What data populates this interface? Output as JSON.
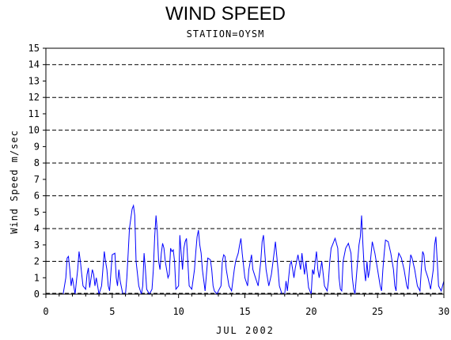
{
  "chart_data": {
    "type": "line",
    "title": "WIND SPEED",
    "subtitle": "STATION=OYSM",
    "xlabel": "JUL 2002",
    "ylabel": "Wind Speed m/sec",
    "xlim": [
      0,
      30
    ],
    "ylim": [
      0,
      15
    ],
    "x_ticks": [
      0,
      5,
      10,
      15,
      20,
      25,
      30
    ],
    "y_ticks": [
      0,
      1,
      2,
      3,
      4,
      5,
      6,
      7,
      8,
      9,
      10,
      11,
      12,
      13,
      14,
      15
    ],
    "gridlines_y": [
      2,
      4,
      6,
      8,
      10,
      12,
      14
    ],
    "grid_style": "dashed",
    "line_color": "#0000ff",
    "series": [
      {
        "x": [
          0.3,
          1.0,
          1.3,
          1.5,
          1.6,
          1.7,
          1.8,
          1.9,
          2.0,
          2.2,
          2.3,
          2.4,
          2.5,
          2.6,
          2.7,
          2.8,
          3.0,
          3.1,
          3.2,
          3.3,
          3.5,
          3.6,
          3.7,
          3.8,
          4.0,
          4.2,
          4.4,
          4.5,
          4.6,
          4.7,
          4.8,
          5.0,
          5.2,
          5.3,
          5.4,
          5.5,
          5.6,
          5.8,
          6.0,
          6.1,
          6.2,
          6.3,
          6.5,
          6.6,
          6.7,
          6.8,
          7.0,
          7.2,
          7.3,
          7.4,
          7.5,
          7.6,
          7.8,
          8.0,
          8.1,
          8.2,
          8.3,
          8.4,
          8.5,
          8.6,
          8.7,
          8.8,
          8.9,
          9.0,
          9.2,
          9.3,
          9.4,
          9.5,
          9.6,
          9.7,
          9.8,
          10.0,
          10.1,
          10.2,
          10.3,
          10.4,
          10.5,
          10.6,
          10.8,
          11.0,
          11.2,
          11.3,
          11.4,
          11.5,
          11.6,
          11.7,
          11.8,
          12.0,
          12.2,
          12.4,
          12.5,
          12.6,
          12.7,
          12.9,
          13.0,
          13.2,
          13.3,
          13.4,
          13.5,
          13.6,
          13.8,
          14.0,
          14.2,
          14.3,
          14.5,
          14.6,
          14.7,
          14.8,
          15.0,
          15.2,
          15.3,
          15.5,
          15.6,
          15.8,
          16.0,
          16.2,
          16.3,
          16.4,
          16.5,
          16.6,
          16.8,
          17.0,
          17.2,
          17.3,
          17.5,
          17.6,
          17.8,
          18.0,
          18.1,
          18.2,
          18.3,
          18.4,
          18.5,
          18.6,
          18.7,
          18.8,
          19.0,
          19.2,
          19.3,
          19.4,
          19.5,
          19.6,
          19.8,
          20.0,
          20.1,
          20.2,
          20.3,
          20.4,
          20.5,
          20.6,
          20.8,
          21.0,
          21.2,
          21.3,
          21.4,
          21.5,
          21.6,
          21.8,
          22.0,
          22.1,
          22.2,
          22.3,
          22.4,
          22.6,
          22.8,
          23.0,
          23.1,
          23.2,
          23.3,
          23.4,
          23.5,
          23.6,
          23.7,
          23.8,
          23.9,
          24.0,
          24.1,
          24.2,
          24.3,
          24.4,
          24.6,
          24.8,
          25.0,
          25.2,
          25.3,
          25.4,
          25.5,
          25.6,
          25.8,
          26.0,
          26.2,
          26.3,
          26.4,
          26.5,
          26.6,
          26.8,
          27.0,
          27.2,
          27.3,
          27.4,
          27.5,
          27.6,
          27.8,
          28.0,
          28.2,
          28.3,
          28.4,
          28.5,
          28.6,
          28.8,
          29.0,
          29.2,
          29.3,
          29.4,
          29.5,
          29.6,
          29.8,
          30.0
        ],
        "y": [
          0.0,
          0.0,
          0.0,
          1.0,
          2.2,
          2.3,
          1.5,
          0.5,
          1.0,
          0.0,
          0.8,
          1.5,
          2.6,
          2.0,
          1.2,
          0.5,
          0.3,
          1.2,
          1.6,
          0.4,
          1.5,
          1.2,
          0.5,
          1.0,
          0.0,
          0.5,
          2.6,
          2.0,
          1.5,
          0.5,
          0.2,
          2.4,
          2.5,
          1.0,
          0.5,
          1.5,
          0.8,
          0.0,
          0.0,
          1.0,
          2.5,
          4.0,
          5.2,
          5.4,
          4.8,
          2.0,
          0.5,
          0.0,
          0.5,
          2.5,
          1.5,
          0.3,
          0.0,
          0.3,
          1.5,
          3.5,
          4.8,
          3.8,
          2.0,
          1.5,
          2.5,
          3.1,
          2.8,
          2.0,
          1.0,
          1.2,
          2.8,
          2.6,
          2.7,
          2.0,
          0.3,
          0.5,
          3.6,
          2.5,
          1.5,
          2.8,
          3.2,
          3.4,
          0.5,
          0.3,
          1.5,
          2.6,
          3.5,
          3.9,
          3.0,
          2.5,
          1.5,
          0.2,
          2.2,
          2.1,
          1.5,
          0.5,
          0.2,
          0.0,
          0.2,
          0.5,
          2.0,
          2.4,
          2.3,
          1.5,
          0.5,
          0.2,
          1.5,
          2.0,
          2.5,
          3.0,
          3.4,
          2.5,
          1.0,
          0.5,
          1.5,
          2.4,
          1.5,
          1.0,
          0.5,
          2.0,
          3.2,
          3.6,
          2.5,
          1.5,
          0.5,
          1.2,
          2.5,
          3.2,
          1.5,
          0.5,
          0.0,
          0.0,
          0.8,
          0.2,
          1.0,
          1.8,
          2.0,
          1.5,
          1.0,
          1.6,
          2.4,
          1.5,
          2.5,
          1.8,
          1.2,
          2.0,
          0.4,
          0.0,
          1.5,
          1.2,
          2.0,
          2.6,
          1.5,
          1.0,
          2.0,
          0.5,
          0.2,
          0.8,
          2.0,
          2.8,
          3.0,
          3.4,
          2.8,
          1.0,
          0.3,
          0.2,
          2.0,
          2.8,
          3.1,
          2.5,
          1.0,
          0.3,
          0.0,
          1.0,
          2.0,
          3.0,
          3.5,
          4.8,
          3.0,
          1.5,
          0.8,
          2.0,
          1.0,
          1.5,
          3.2,
          2.5,
          1.5,
          0.5,
          0.2,
          1.5,
          2.5,
          3.3,
          3.2,
          2.5,
          1.5,
          0.5,
          0.2,
          2.0,
          2.5,
          2.2,
          1.5,
          0.5,
          0.3,
          1.5,
          2.4,
          2.2,
          1.5,
          0.5,
          0.2,
          1.5,
          2.6,
          2.4,
          1.5,
          1.0,
          0.3,
          1.5,
          3.0,
          3.5,
          2.0,
          0.5,
          0.2,
          0.8
        ]
      }
    ]
  }
}
